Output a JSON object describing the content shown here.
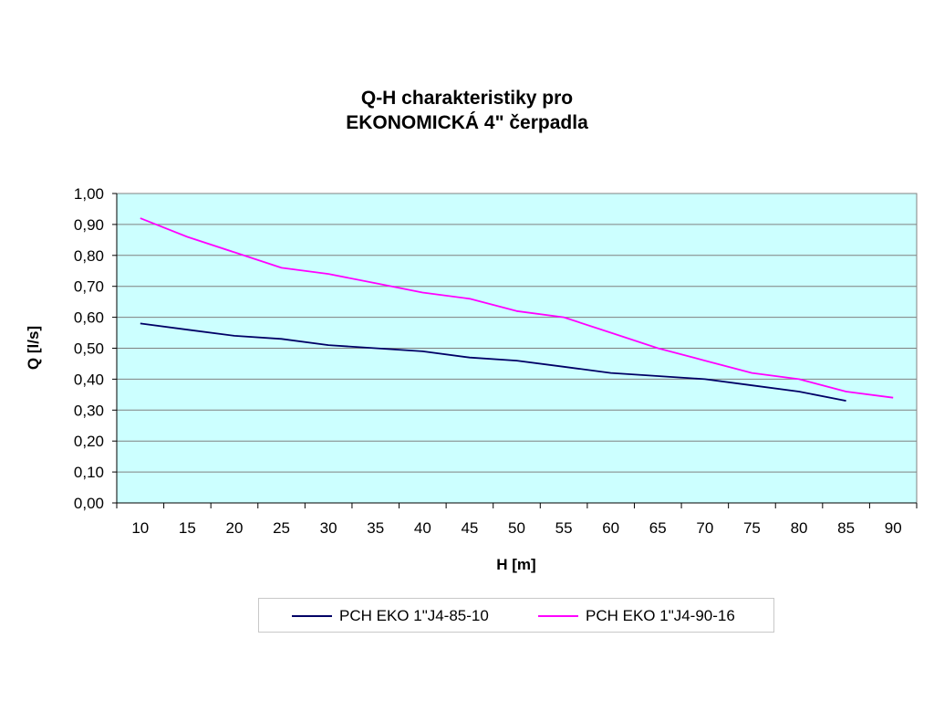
{
  "chart_data": {
    "type": "line",
    "title_line1": "Q-H charakteristiky pro",
    "title_line2": "EKONOMICKÁ 4\" čerpadla",
    "xlabel": "H [m]",
    "ylabel": "Q [l/s]",
    "x": [
      10,
      15,
      20,
      25,
      30,
      35,
      40,
      45,
      50,
      55,
      60,
      65,
      70,
      75,
      80,
      85,
      90
    ],
    "y_ticks": [
      "0,00",
      "0,10",
      "0,20",
      "0,30",
      "0,40",
      "0,50",
      "0,60",
      "0,70",
      "0,80",
      "0,90",
      "1,00"
    ],
    "ylim": [
      0,
      1
    ],
    "grid": "horizontal",
    "plot_background": "#ccffff",
    "legend_position": "bottom",
    "series": [
      {
        "name": "PCH EKO 1\"J4-85-10",
        "color": "#000066",
        "values": [
          0.58,
          0.56,
          0.54,
          0.53,
          0.51,
          0.5,
          0.49,
          0.47,
          0.46,
          0.44,
          0.42,
          0.41,
          0.4,
          0.38,
          0.36,
          0.33,
          null
        ]
      },
      {
        "name": "PCH EKO 1\"J4-90-16",
        "color": "#ff00ff",
        "values": [
          0.92,
          0.86,
          0.81,
          0.76,
          0.74,
          0.71,
          0.68,
          0.66,
          0.62,
          0.6,
          0.55,
          0.5,
          0.46,
          0.42,
          0.4,
          0.36,
          0.34
        ]
      }
    ]
  }
}
